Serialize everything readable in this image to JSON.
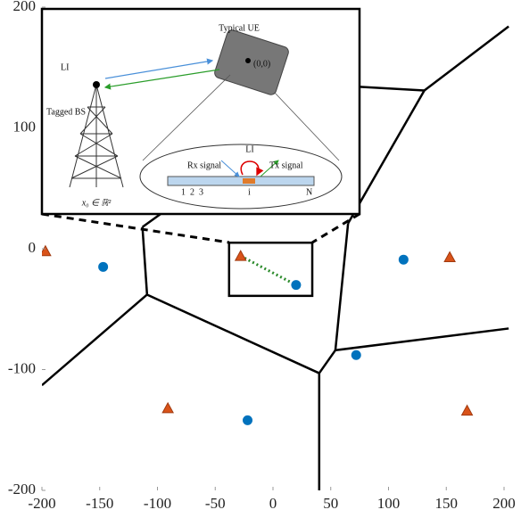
{
  "chart_data": {
    "type": "scatter",
    "xlim": [
      -200,
      200
    ],
    "ylim": [
      -200,
      200
    ],
    "xticks": [
      -200,
      -150,
      -100,
      -50,
      0,
      50,
      100,
      150,
      200
    ],
    "yticks": [
      -200,
      -100,
      0,
      100,
      200
    ],
    "series": [
      {
        "marker": "circle",
        "color": "#0072bd",
        "x": [
          -147,
          113,
          20,
          72,
          -22
        ],
        "y": [
          -15,
          -9,
          -30,
          -88,
          -142
        ]
      },
      {
        "marker": "triangle",
        "color": "#d95319",
        "x": [
          -197,
          -28,
          153,
          -91,
          168
        ],
        "y": [
          -2,
          -6,
          -7,
          -132,
          -134
        ]
      }
    ],
    "edges": [
      [
        -113,
        18,
        -109,
        -38
      ],
      [
        -109,
        -38,
        -200,
        -113
      ],
      [
        -109,
        -38,
        40,
        -103
      ],
      [
        40,
        -103,
        40,
        -200
      ],
      [
        40,
        -103,
        54,
        -84
      ],
      [
        54,
        -84,
        65,
        21
      ],
      [
        54,
        -84,
        204,
        -66
      ],
      [
        65,
        21,
        131,
        131
      ],
      [
        131,
        131,
        204,
        184
      ],
      [
        131,
        131,
        75,
        134
      ],
      [
        -113,
        18,
        -97,
        29
      ]
    ],
    "link": [
      -28,
      -6,
      20,
      -30
    ],
    "zoom_box": [
      -38,
      5,
      34,
      -39
    ],
    "inset": {
      "ue": "Typical UE",
      "origin": "(0,0)",
      "li_top": "LI",
      "bs": "Tagged BS",
      "bs_pos": "x₀ ∈ ℝ²",
      "li_loop": "LI",
      "rx": "Rx signal",
      "tx": "Tx signal",
      "a1": "1",
      "a2": "2",
      "a3": "3",
      "ai": "i",
      "an": "N"
    }
  }
}
